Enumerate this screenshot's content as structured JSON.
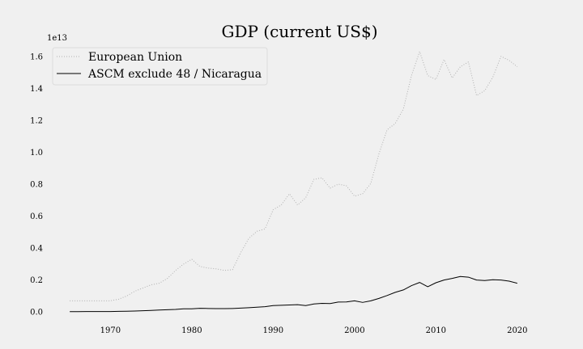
{
  "chart_data": {
    "type": "line",
    "title": "GDP (current US$)",
    "xlabel": "",
    "ylabel": "",
    "y_offset_label": "1e13",
    "xlim": [
      1962,
      2024
    ],
    "ylim": [
      -0.08,
      1.7
    ],
    "x_ticks": [
      1970,
      1980,
      1990,
      2000,
      2010,
      2020
    ],
    "y_ticks": [
      0.0,
      0.2,
      0.4,
      0.6,
      0.8,
      1.0,
      1.2,
      1.4,
      1.6
    ],
    "grid": false,
    "legend_position": "top-left",
    "series": [
      {
        "name": "European Union",
        "style": "dotted",
        "color": "#b0b0b0",
        "x": [
          1965,
          1966,
          1967,
          1968,
          1969,
          1970,
          1971,
          1972,
          1973,
          1974,
          1975,
          1976,
          1977,
          1978,
          1979,
          1980,
          1981,
          1982,
          1983,
          1984,
          1985,
          1986,
          1987,
          1988,
          1989,
          1990,
          1991,
          1992,
          1993,
          1994,
          1995,
          1996,
          1997,
          1998,
          1999,
          2000,
          2001,
          2002,
          2003,
          2004,
          2005,
          2006,
          2007,
          2008,
          2009,
          2010,
          2011,
          2012,
          2013,
          2014,
          2015,
          2016,
          2017,
          2018,
          2019,
          2020
        ],
        "values": [
          0.07,
          0.07,
          0.07,
          0.07,
          0.07,
          0.07,
          0.08,
          0.1,
          0.13,
          0.15,
          0.17,
          0.18,
          0.21,
          0.26,
          0.3,
          0.33,
          0.285,
          0.275,
          0.27,
          0.26,
          0.265,
          0.37,
          0.46,
          0.505,
          0.52,
          0.64,
          0.67,
          0.74,
          0.67,
          0.715,
          0.83,
          0.84,
          0.775,
          0.8,
          0.79,
          0.725,
          0.74,
          0.805,
          0.99,
          1.14,
          1.18,
          1.27,
          1.48,
          1.63,
          1.48,
          1.455,
          1.58,
          1.465,
          1.535,
          1.565,
          1.355,
          1.385,
          1.47,
          1.6,
          1.575,
          1.535
        ]
      },
      {
        "name": "ASCM exclude 48 / Nicaragua",
        "style": "solid",
        "color": "#000000",
        "x": [
          1965,
          1966,
          1967,
          1968,
          1969,
          1970,
          1971,
          1972,
          1973,
          1974,
          1975,
          1976,
          1977,
          1978,
          1979,
          1980,
          1981,
          1982,
          1983,
          1984,
          1985,
          1986,
          1987,
          1988,
          1989,
          1990,
          1991,
          1992,
          1993,
          1994,
          1995,
          1996,
          1997,
          1998,
          1999,
          2000,
          2001,
          2002,
          2003,
          2004,
          2005,
          2006,
          2007,
          2008,
          2009,
          2010,
          2011,
          2012,
          2013,
          2014,
          2015,
          2016,
          2017,
          2018,
          2019,
          2020
        ],
        "values": [
          0.002,
          0.002,
          0.003,
          0.003,
          0.003,
          0.003,
          0.004,
          0.005,
          0.006,
          0.008,
          0.01,
          0.012,
          0.014,
          0.016,
          0.02,
          0.02,
          0.023,
          0.022,
          0.021,
          0.021,
          0.022,
          0.024,
          0.027,
          0.03,
          0.033,
          0.04,
          0.042,
          0.044,
          0.046,
          0.04,
          0.05,
          0.054,
          0.053,
          0.062,
          0.063,
          0.07,
          0.06,
          0.07,
          0.085,
          0.103,
          0.123,
          0.138,
          0.165,
          0.185,
          0.158,
          0.183,
          0.2,
          0.21,
          0.222,
          0.218,
          0.2,
          0.197,
          0.202,
          0.2,
          0.193,
          0.18
        ]
      }
    ]
  }
}
